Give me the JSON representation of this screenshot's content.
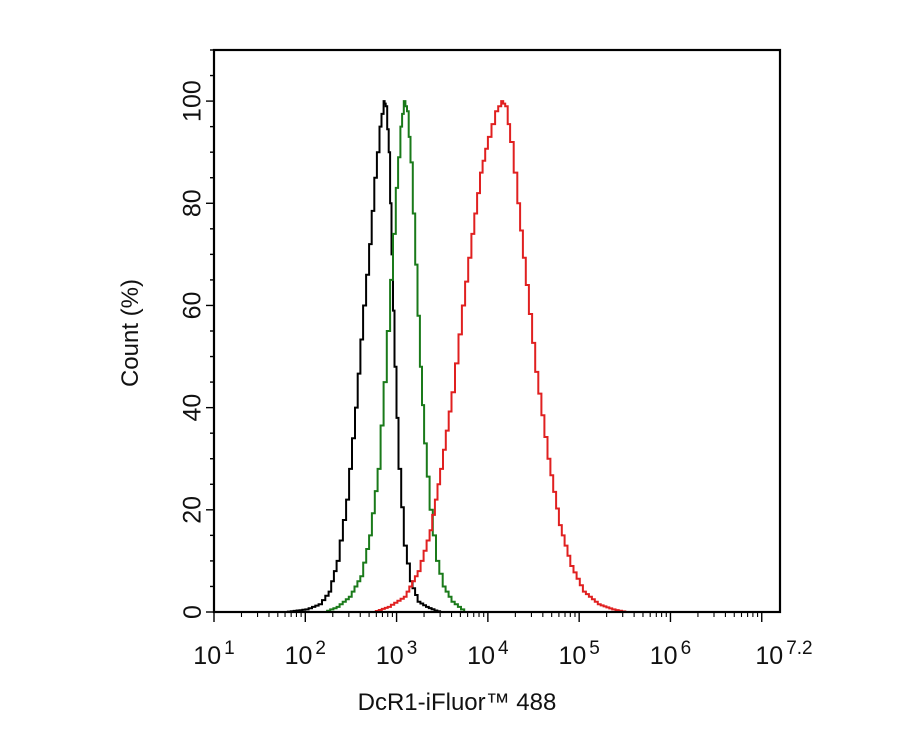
{
  "chart_data": {
    "type": "line",
    "title": "",
    "xlabel": "DcR1-iFluor™ 488",
    "ylabel": "Count  (%)",
    "x_scale": "log10",
    "xlim_exponent": [
      1,
      7.2
    ],
    "ylim": [
      0,
      110
    ],
    "grid": false,
    "legend": "none",
    "x_ticks": [
      {
        "base": "10",
        "exp": "1"
      },
      {
        "base": "10",
        "exp": "2"
      },
      {
        "base": "10",
        "exp": "3"
      },
      {
        "base": "10",
        "exp": "4"
      },
      {
        "base": "10",
        "exp": "5"
      },
      {
        "base": "10",
        "exp": "6"
      },
      {
        "base": "10",
        "exp": "7.2"
      }
    ],
    "y_ticks": [
      "0",
      "20",
      "40",
      "60",
      "80",
      "100"
    ],
    "series": [
      {
        "color": "#000000",
        "x": [
          60,
          100,
          140,
          180,
          220,
          280,
          350,
          430,
          500,
          570,
          650,
          720,
          760,
          820,
          880,
          950,
          1050,
          1200,
          1400,
          1700,
          2100,
          2600,
          3000
        ],
        "y": [
          0,
          0.5,
          1.5,
          4,
          10,
          22,
          40,
          60,
          72,
          85,
          95,
          100,
          99,
          90,
          70,
          48,
          28,
          13,
          6,
          2,
          1,
          0.3,
          0
        ]
      },
      {
        "color": "#1a7a1a",
        "x": [
          160,
          220,
          300,
          400,
          500,
          620,
          720,
          850,
          980,
          1100,
          1200,
          1300,
          1420,
          1600,
          1800,
          2000,
          2300,
          2700,
          3200,
          4000,
          5500
        ],
        "y": [
          0,
          1,
          3,
          7,
          15,
          28,
          45,
          65,
          83,
          95,
          100,
          98,
          88,
          68,
          48,
          33,
          20,
          10,
          5,
          2,
          0
        ]
      },
      {
        "color": "#e02020",
        "x": [
          550,
          800,
          1200,
          1700,
          2300,
          3000,
          4000,
          5200,
          6600,
          8200,
          10000,
          12000,
          14000,
          15500,
          17500,
          21000,
          26000,
          33000,
          45000,
          60000,
          80000,
          110000,
          160000,
          230000,
          320000
        ],
        "y": [
          0,
          1,
          3,
          8,
          16,
          28,
          43,
          60,
          74,
          86,
          93,
          98,
          100,
          99,
          92,
          80,
          64,
          47,
          30,
          17,
          9,
          4,
          1.5,
          0.5,
          0
        ]
      }
    ]
  }
}
